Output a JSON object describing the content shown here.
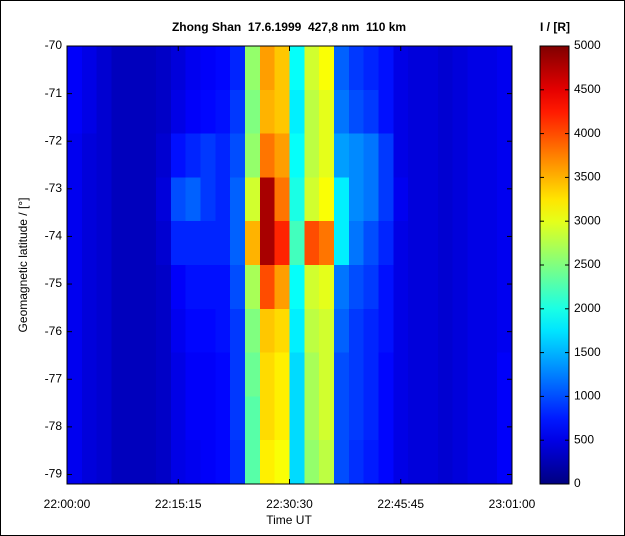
{
  "chart_data": {
    "type": "heatmap",
    "title": "Zhong Shan  17.6.1999  427,8 nm  110 km",
    "xlabel": "Time UT",
    "ylabel": "Geomagnetic latitude / [°]",
    "xlim": [
      "22:00:00",
      "23:01:00"
    ],
    "xticks": [
      "22:00:00",
      "22:15:15",
      "22:30:30",
      "22:45:45",
      "23:01:00"
    ],
    "ylim": [
      -79.2,
      -70
    ],
    "yticks": [
      -70,
      -71,
      -72,
      -73,
      -74,
      -75,
      -76,
      -77,
      -78,
      -79
    ],
    "colorbar": {
      "title": "I / [R]",
      "lim": [
        0,
        5000
      ],
      "ticks": [
        0,
        500,
        1000,
        1500,
        2000,
        2500,
        3000,
        3500,
        4000,
        4500,
        5000
      ]
    },
    "z": [
      [
        600,
        500,
        400,
        300,
        300,
        300,
        350,
        450,
        550,
        600,
        650,
        800,
        2600,
        3600,
        3400,
        1900,
        2900,
        3100,
        1100,
        900,
        800,
        700,
        500,
        450,
        450,
        400,
        450,
        500,
        500,
        550
      ],
      [
        600,
        500,
        400,
        300,
        300,
        300,
        350,
        500,
        600,
        650,
        700,
        900,
        2500,
        3500,
        3400,
        1800,
        2800,
        3000,
        1200,
        1000,
        900,
        700,
        500,
        450,
        450,
        400,
        450,
        500,
        500,
        550
      ],
      [
        550,
        450,
        400,
        300,
        300,
        300,
        400,
        700,
        800,
        900,
        800,
        1000,
        2600,
        3800,
        3600,
        1900,
        2800,
        3000,
        1400,
        1300,
        1200,
        900,
        500,
        450,
        450,
        400,
        450,
        500,
        500,
        550
      ],
      [
        550,
        450,
        400,
        300,
        300,
        300,
        450,
        1000,
        1100,
        900,
        800,
        1100,
        2900,
        4800,
        3800,
        2000,
        2900,
        3100,
        1800,
        1300,
        1200,
        900,
        550,
        450,
        450,
        400,
        450,
        500,
        500,
        550
      ],
      [
        550,
        450,
        400,
        300,
        300,
        300,
        400,
        800,
        800,
        800,
        800,
        1100,
        3500,
        4800,
        4200,
        2200,
        4000,
        3800,
        1800,
        1200,
        1000,
        800,
        500,
        450,
        450,
        400,
        450,
        500,
        500,
        550
      ],
      [
        550,
        450,
        400,
        300,
        300,
        300,
        350,
        600,
        700,
        700,
        700,
        1000,
        2700,
        4000,
        3600,
        1900,
        2900,
        3000,
        1200,
        1000,
        900,
        700,
        500,
        450,
        450,
        400,
        450,
        500,
        500,
        550
      ],
      [
        550,
        450,
        400,
        300,
        300,
        300,
        350,
        550,
        650,
        650,
        700,
        900,
        2500,
        3400,
        3300,
        1800,
        2800,
        2900,
        1100,
        900,
        800,
        700,
        500,
        450,
        450,
        400,
        450,
        500,
        500,
        550
      ],
      [
        550,
        450,
        400,
        300,
        300,
        300,
        350,
        500,
        600,
        600,
        650,
        900,
        2400,
        3300,
        3200,
        1700,
        2700,
        2900,
        1000,
        900,
        800,
        650,
        500,
        450,
        450,
        400,
        450,
        500,
        500,
        600
      ],
      [
        550,
        450,
        400,
        300,
        300,
        300,
        350,
        500,
        600,
        600,
        650,
        900,
        2300,
        3300,
        3200,
        1700,
        2700,
        2900,
        1000,
        900,
        800,
        650,
        500,
        450,
        450,
        400,
        450,
        500,
        500,
        600
      ],
      [
        550,
        450,
        400,
        300,
        300,
        300,
        350,
        500,
        550,
        600,
        650,
        850,
        2300,
        3200,
        3100,
        1700,
        2600,
        2800,
        1000,
        850,
        750,
        650,
        500,
        450,
        450,
        400,
        450,
        500,
        500,
        600
      ]
    ]
  }
}
